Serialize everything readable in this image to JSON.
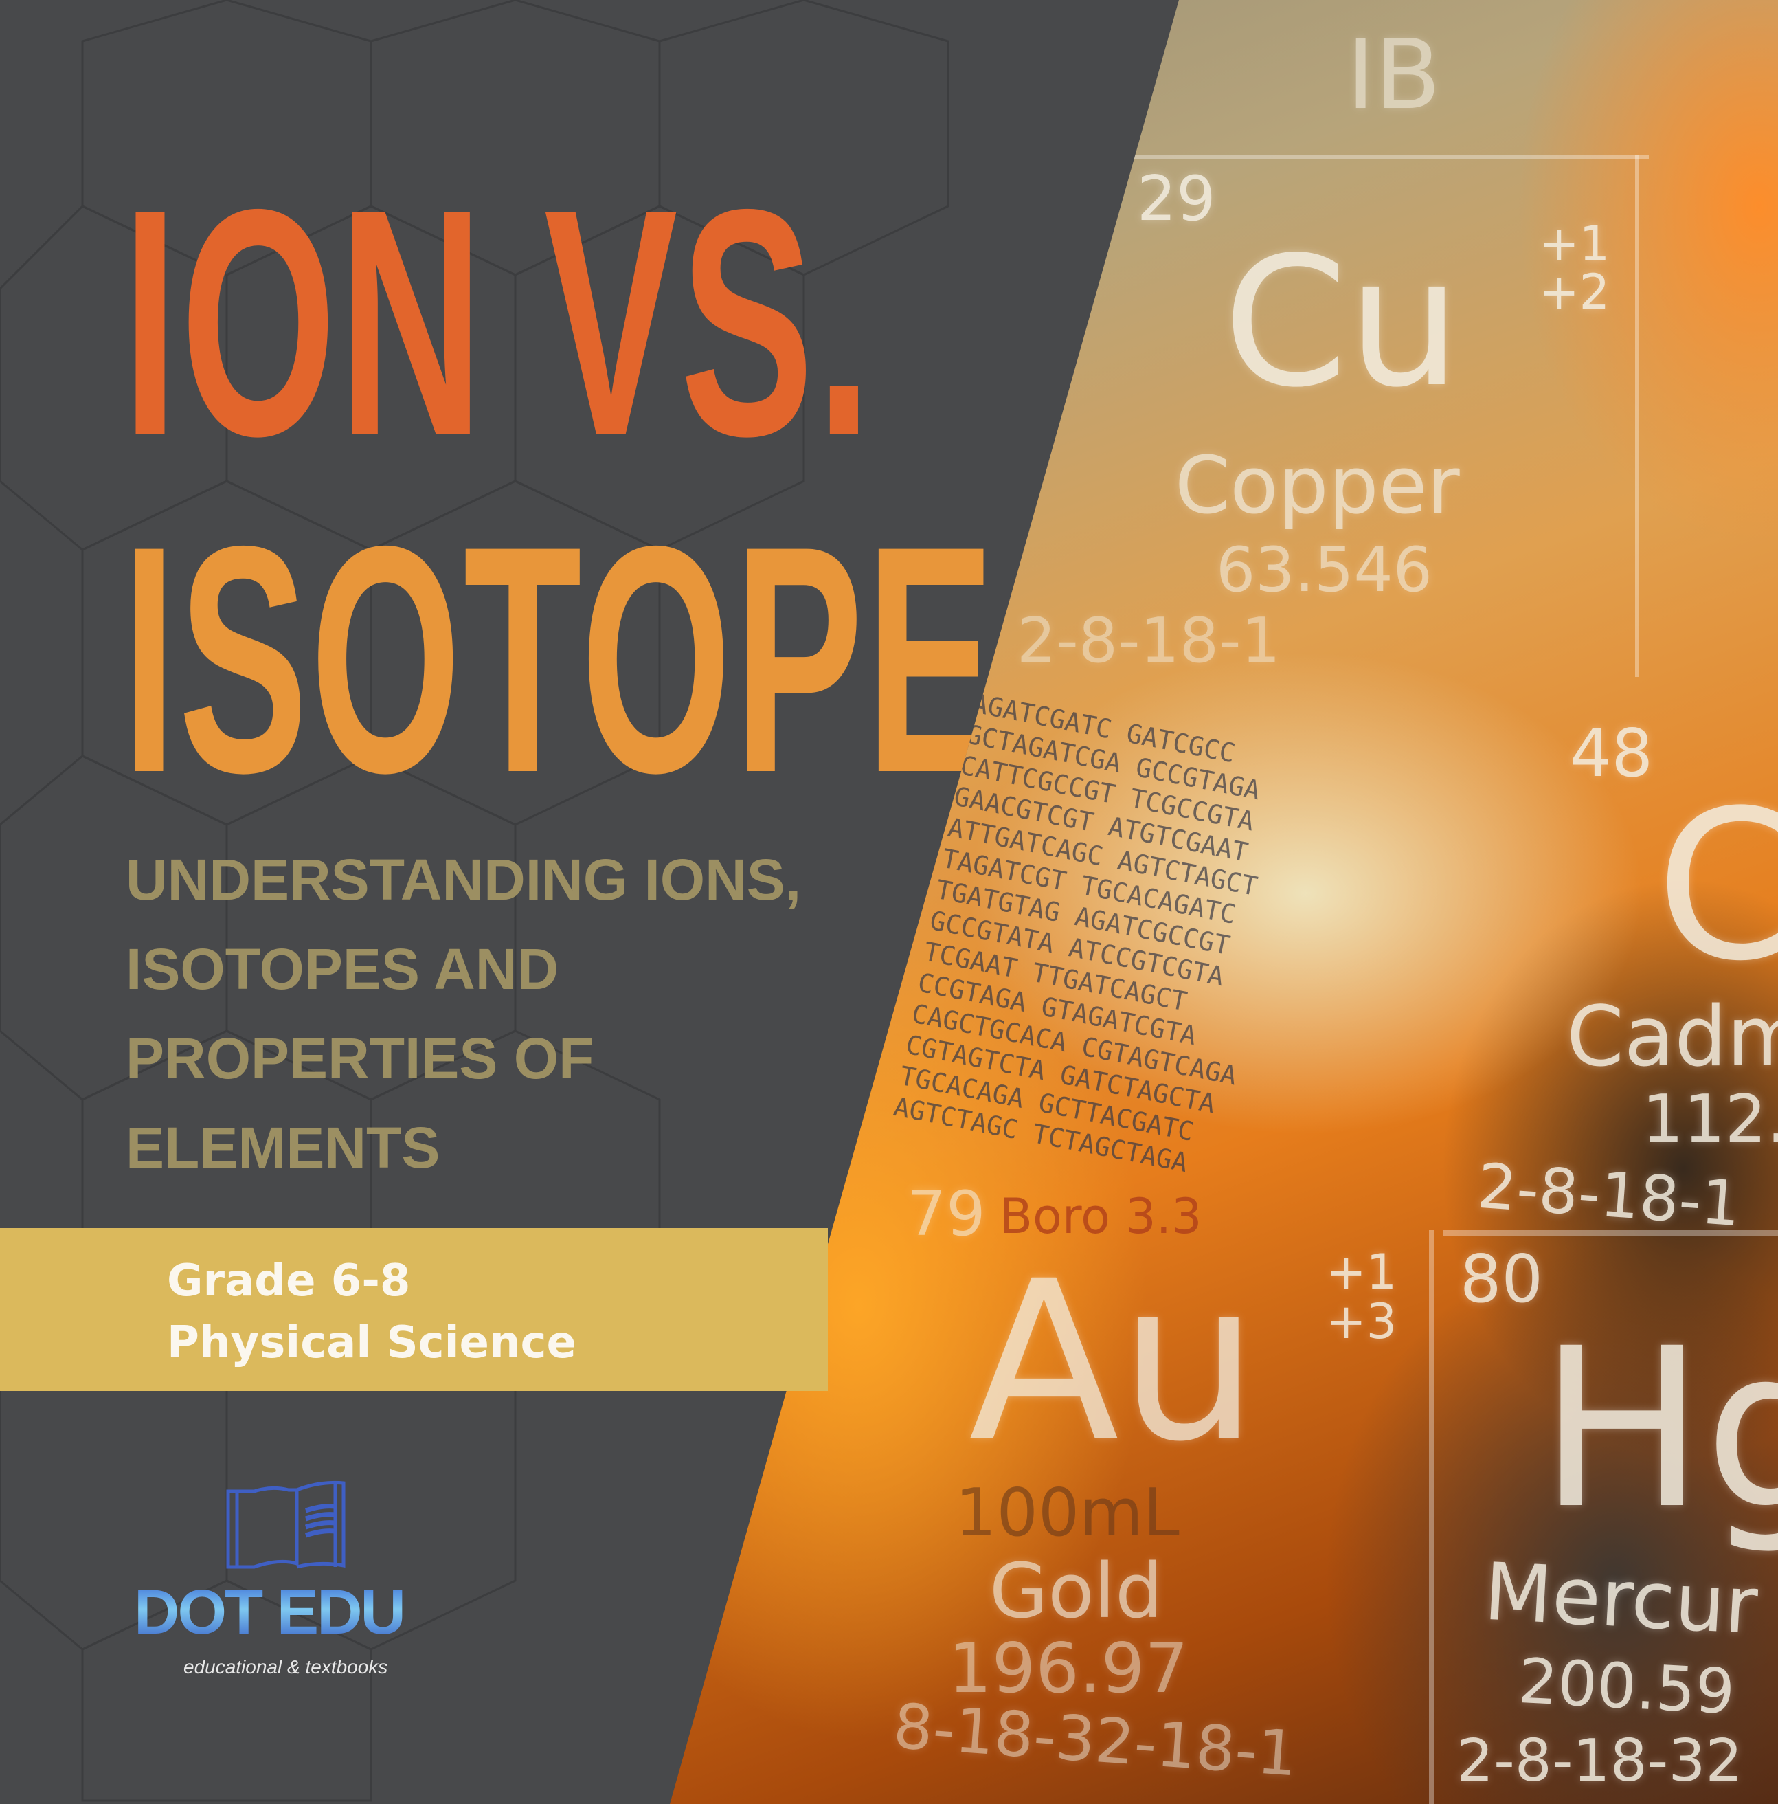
{
  "cover": {
    "title_line1": "ION VS.",
    "title_line2": "ISOTOPE",
    "subtitle_lines": [
      "UNDERSTANDING IONS,",
      "ISOTOPES AND",
      "PROPERTIES OF",
      "ELEMENTS"
    ],
    "grade": "Grade 6-8",
    "subject": "Physical Science",
    "colors": {
      "panel": "#48494b",
      "title1": "#e2652c",
      "title2": "#e8963a",
      "subtitle": "#9c8f62",
      "band": "#dbb95c"
    }
  },
  "logo": {
    "icon": "open-book-icon",
    "brand": "DOT EDU",
    "tagline": "educational & textbooks"
  },
  "photo": {
    "group": "IB",
    "copper": {
      "number": "29",
      "symbol": "Cu",
      "name": "Copper",
      "mass": "63.546",
      "shells": "2-8-18-1",
      "charges": "+1 +2"
    },
    "cadmium": {
      "number": "48",
      "symbol": "C",
      "name": "Cadm",
      "mass": "112.",
      "shells": "2-8-18-1"
    },
    "gold": {
      "number": "79",
      "symbol": "Au",
      "name": "Gold",
      "mass": "196.97",
      "shells": "8-18-32-18-1",
      "charges": "+1 +3"
    },
    "mercury": {
      "number": "80",
      "symbol": "Hg",
      "name": "Mercur",
      "mass": "200.59",
      "shells": "2-8-18-32"
    },
    "beaker": {
      "glass": "Boro 3.3",
      "volume": "100mL"
    },
    "dna_lines": [
      "AGATCGATC GATCGCC",
      "GCTAGATCGA GCCGTAGA",
      "CATTCGCCGT TCGCCGTA",
      "GAACGTCGT ATGTCGAAT",
      "ATTGATCAGC AGTCTAGCT",
      "TAGATCGT TGCACAGATC",
      "TGATGTAG AGATCGCCGT",
      "GCCGTATA ATCCGTCGTA",
      "TCGAAT TTGATCAGCT",
      "CCGTAGA GTAGATCGTA",
      "CAGCTGCACA CGTAGTCAGA",
      "CGTAGTCTA GATCTAGCTA",
      "TGCACAGA GCTTACGATC",
      "AGTCTAGC TCTAGCTAGA"
    ]
  }
}
